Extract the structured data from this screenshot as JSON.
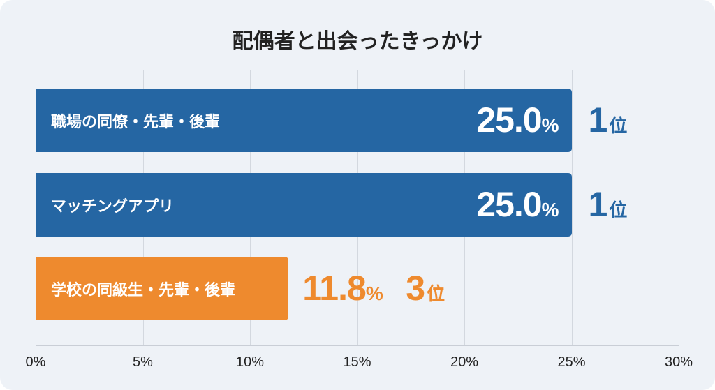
{
  "chart_data": {
    "type": "bar",
    "orientation": "horizontal",
    "title": "配偶者と出会ったきっかけ",
    "categories": [
      "職場の同僚・先輩・後輩",
      "マッチングアプリ",
      "学校の同級生・先輩・後輩"
    ],
    "values": [
      25.0,
      25.0,
      11.8
    ],
    "value_labels": [
      "25.0",
      "25.0",
      "11.8"
    ],
    "value_unit": "%",
    "ranks": [
      "1",
      "1",
      "3"
    ],
    "rank_suffix": "位",
    "bar_colors": [
      "#2566a3",
      "#2566a3",
      "#ee8a2e"
    ],
    "xlim": [
      0,
      30
    ],
    "xticks": [
      "0%",
      "5%",
      "10%",
      "15%",
      "20%",
      "25%",
      "30%"
    ],
    "xtick_values": [
      0,
      5,
      10,
      15,
      20,
      25,
      30
    ],
    "grid": true,
    "xlabel": "",
    "ylabel": ""
  }
}
